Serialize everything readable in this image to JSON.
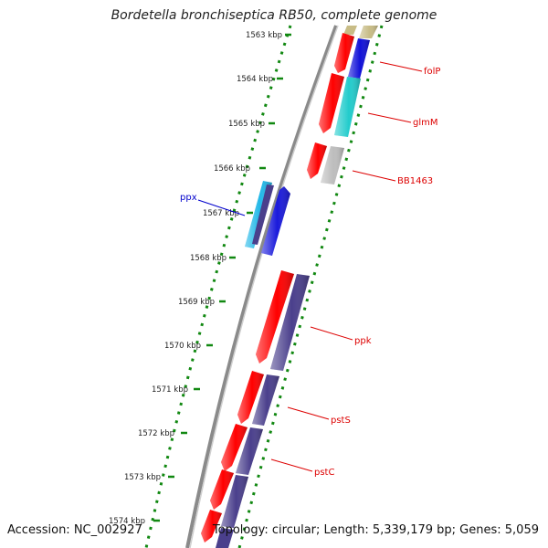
{
  "title": "Bordetella bronchiseptica RB50, complete genome",
  "footer": {
    "accession": "Accession: NC_002927",
    "summary": "Topology: circular; Length: 5,339,179 bp; Genes: 5,059"
  },
  "colors": {
    "cds": "#ff0000",
    "ppx_light": "#22b8e8",
    "ppx_dark": "#1a1adb",
    "folP": "#1010d8",
    "glmM": "#22cccc",
    "BB1463": "#bdbdbd",
    "operon": "#4a3f8c",
    "olive": "#c8bc86",
    "backbone": "#888888",
    "ticks": "#118811",
    "gene_label": "#dd0000",
    "ppx_label": "#0000cc"
  },
  "scale": {
    "tick_labels": [
      "1563 kbp",
      "1564 kbp",
      "1565 kbp",
      "1566 kbp",
      "1567 kbp",
      "1568 kbp",
      "1569 kbp",
      "1570 kbp",
      "1571 kbp",
      "1572 kbp",
      "1573 kbp",
      "1574 kbp"
    ]
  },
  "gene_labels": [
    {
      "id": "folP",
      "text": "folP"
    },
    {
      "id": "glmM",
      "text": "glmM"
    },
    {
      "id": "BB1463",
      "text": "BB1463"
    },
    {
      "id": "ppx",
      "text": "ppx"
    },
    {
      "id": "ppk",
      "text": "ppk"
    },
    {
      "id": "pstS",
      "text": "pstS"
    },
    {
      "id": "pstC",
      "text": "pstC"
    }
  ]
}
